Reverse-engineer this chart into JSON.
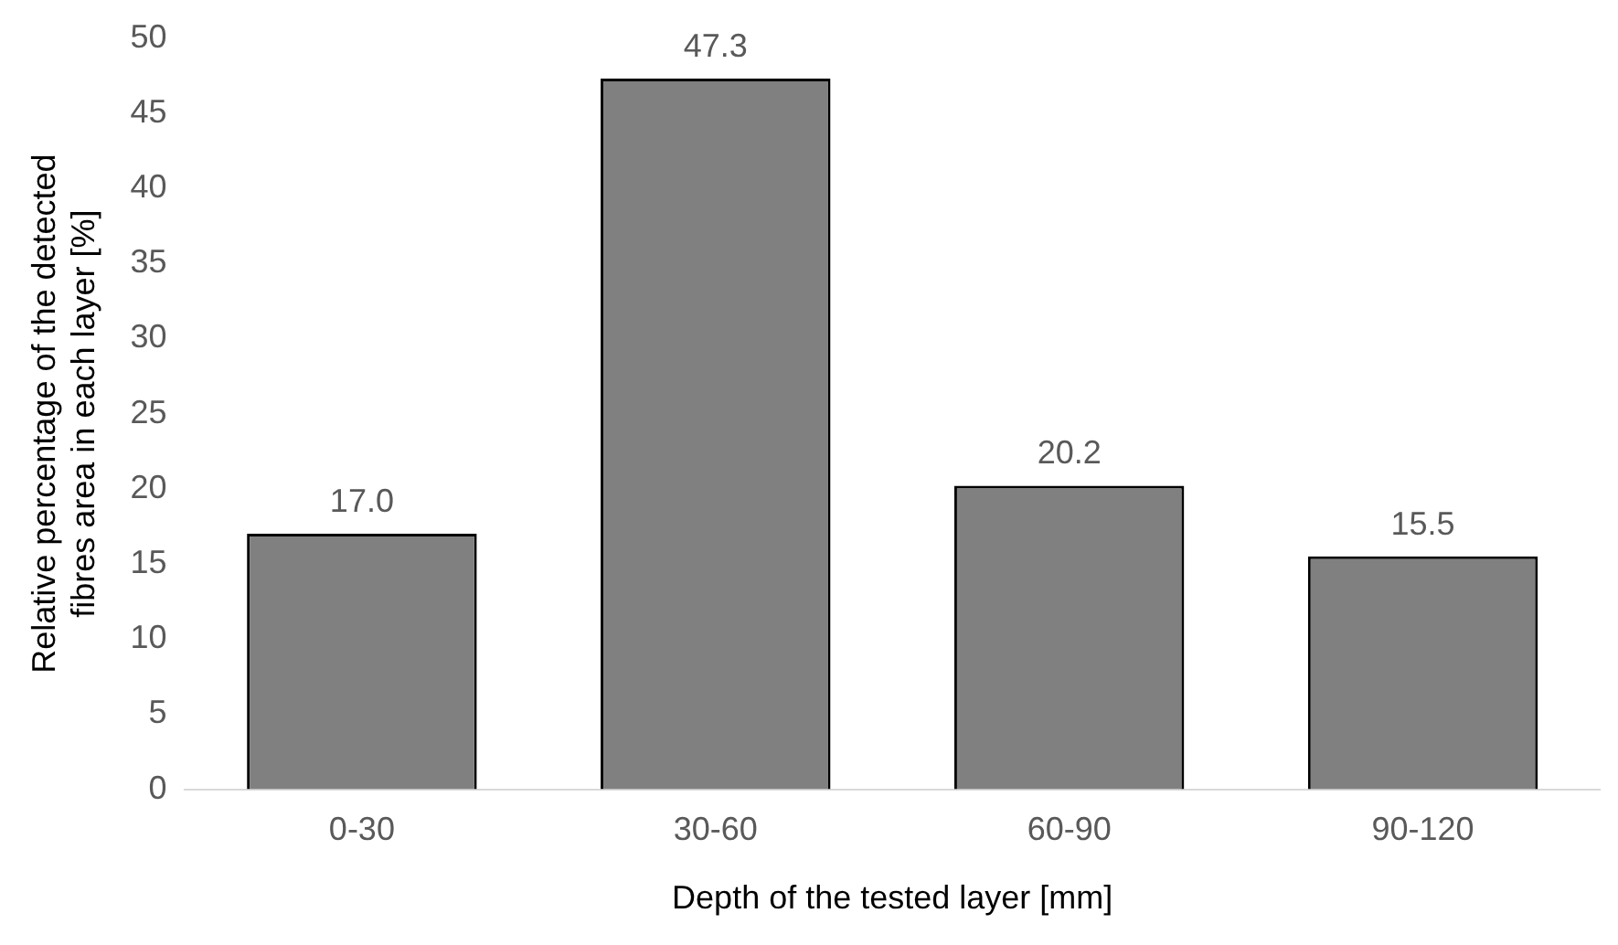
{
  "chart_data": {
    "type": "bar",
    "xlabel": "Depth of the tested layer [mm]",
    "ylabel": "Relative percentage of the detected fibres area in each layer [%]",
    "categories": [
      "0-30",
      "30-60",
      "60-90",
      "90-120"
    ],
    "values": [
      17.0,
      47.3,
      20.2,
      15.5
    ],
    "value_labels": [
      "17.0",
      "47.3",
      "20.2",
      "15.5"
    ],
    "color": "#808080",
    "ylim": [
      0,
      50
    ],
    "yticks": [
      0,
      5,
      10,
      15,
      20,
      25,
      30,
      35,
      40,
      45,
      50
    ],
    "grid": false
  }
}
